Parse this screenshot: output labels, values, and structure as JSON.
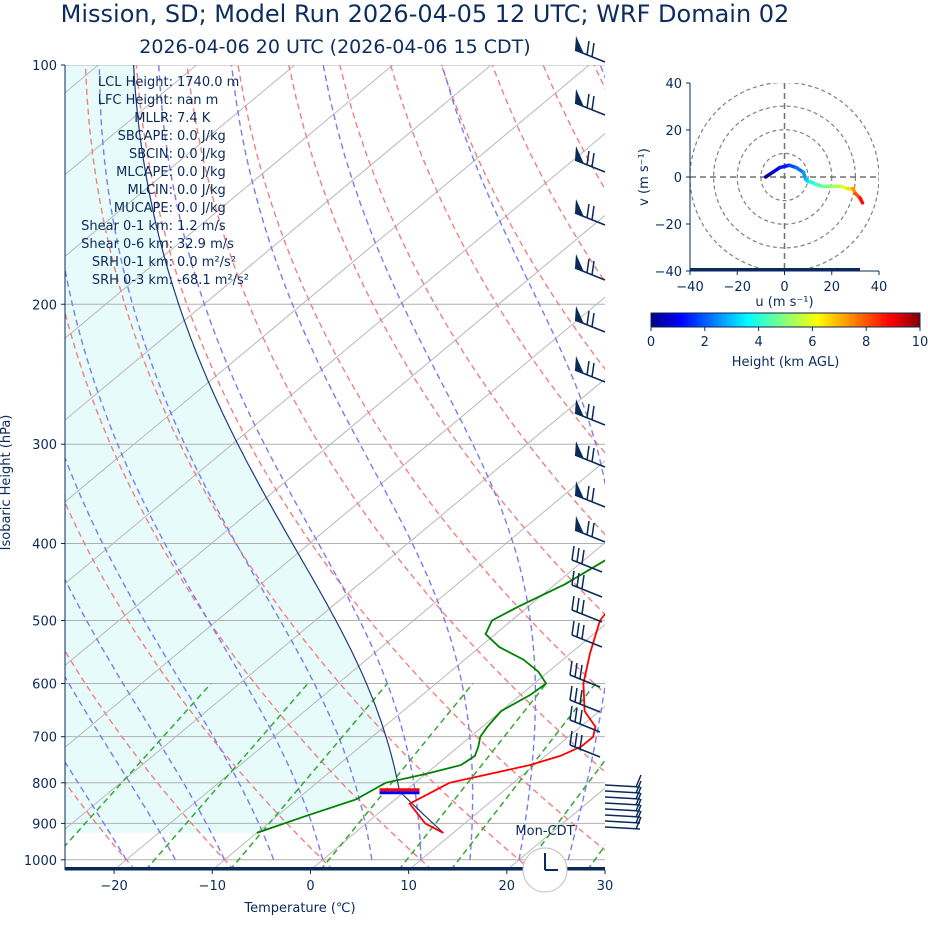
{
  "title": "Mission, SD; Model Run 2026-04-05 12 UTC; WRF Domain 02",
  "subtitle": "2026-04-06 20 UTC  (2026-04-06 15 CDT)",
  "chart_data": [
    {
      "type": "line",
      "name": "skew-t",
      "xlabel": "Temperature (℃)",
      "ylabel": "Isobaric Height (hPa)",
      "xlim": [
        -25,
        30
      ],
      "ylim": [
        1030,
        100
      ],
      "y_scale": "log",
      "x_ticks": [
        -20,
        -10,
        0,
        10,
        20,
        30
      ],
      "y_ticks": [
        100,
        200,
        300,
        400,
        500,
        600,
        700,
        800,
        900,
        1000
      ],
      "grid": true,
      "series": [
        {
          "kind": "temperature",
          "color": "#ff0000",
          "p": [
            925,
            900,
            850,
            800,
            780,
            760,
            740,
            720,
            700,
            680,
            650,
            600,
            550,
            500,
            450,
            400,
            350,
            300,
            250,
            220,
            190,
            150,
            100
          ],
          "t": [
            9,
            6,
            2,
            3.5,
            6.5,
            9.5,
            11.5,
            12.5,
            12.5,
            11.5,
            8.5,
            5,
            2,
            -1,
            -2.5,
            -5,
            -8,
            -12,
            -16,
            -16,
            -7,
            13,
            43
          ]
        },
        {
          "kind": "dewpoint",
          "color": "#008000",
          "p": [
            925,
            880,
            840,
            800,
            780,
            760,
            740,
            720,
            700,
            680,
            650,
            620,
            600,
            580,
            560,
            540,
            520,
            500,
            480,
            450,
            400,
            350,
            300,
            250,
            210,
            190,
            160,
            140,
            120,
            100
          ],
          "t": [
            -10,
            -7,
            -4,
            -3,
            0,
            2.5,
            2.8,
            2,
            1,
            0.5,
            0,
            1,
            1.2,
            -1,
            -4,
            -8,
            -11,
            -12,
            -11,
            -9,
            -7,
            -9,
            -14,
            -18,
            -21,
            -20,
            -18,
            -17,
            -12,
            -2
          ]
        }
      ],
      "stats": [
        {
          "label": "LCL Height:",
          "value": "1740.0 m"
        },
        {
          "label": "LFC Height:",
          "value": "nan m"
        },
        {
          "label": "MLLR:",
          "value": "7.4 K"
        },
        {
          "label": "SBCAPE:",
          "value": "0.0 J/kg"
        },
        {
          "label": "SBCIN:",
          "value": "0.0 J/kg"
        },
        {
          "label": "MLCAPE:",
          "value": "0.0 J/kg"
        },
        {
          "label": "MLCIN:",
          "value": "0.0 J/kg"
        },
        {
          "label": "MUCAPE:",
          "value": "0.0 J/kg"
        },
        {
          "label": "Shear 0-1 km:",
          "value": "1.2 m/s"
        },
        {
          "label": "Shear 0-6 km:",
          "value": "32.9 m/s"
        },
        {
          "label": "SRH 0-1 km:",
          "value": "0.0 m²/s²"
        },
        {
          "label": "SRH 0-3 km:",
          "value": "-68.1 m²/s²"
        }
      ],
      "lcl_pressure": 820,
      "clock_label": "Mon-CDT"
    },
    {
      "type": "line",
      "name": "hodograph",
      "xlabel": "u (m s⁻¹)",
      "ylabel": "v (m s⁻¹)",
      "xlim": [
        -40,
        40
      ],
      "ylim": [
        -40,
        40
      ],
      "ticks": [
        -40,
        -20,
        0,
        20,
        40
      ],
      "ring_radii": [
        10,
        20,
        30,
        40
      ],
      "u": [
        -8,
        -5,
        -2,
        2,
        5,
        8,
        9,
        10,
        11,
        13,
        16,
        20,
        24,
        27,
        29,
        30,
        32,
        33
      ],
      "v": [
        0,
        2,
        4,
        5,
        4,
        2,
        -1,
        -2,
        -2,
        -3,
        -4,
        -4,
        -4,
        -5,
        -5,
        -7,
        -9,
        -11
      ],
      "height_km": [
        0.3,
        0.8,
        1.3,
        1.8,
        2.2,
        2.6,
        3.0,
        3.4,
        3.8,
        4.3,
        4.8,
        5.3,
        5.9,
        6.6,
        7.3,
        8.0,
        8.8,
        9.6
      ]
    }
  ],
  "colorbar": {
    "label": "Height (km AGL)",
    "ticks": [
      0,
      2,
      4,
      6,
      8,
      10
    ],
    "vmin": 0,
    "vmax": 10
  }
}
